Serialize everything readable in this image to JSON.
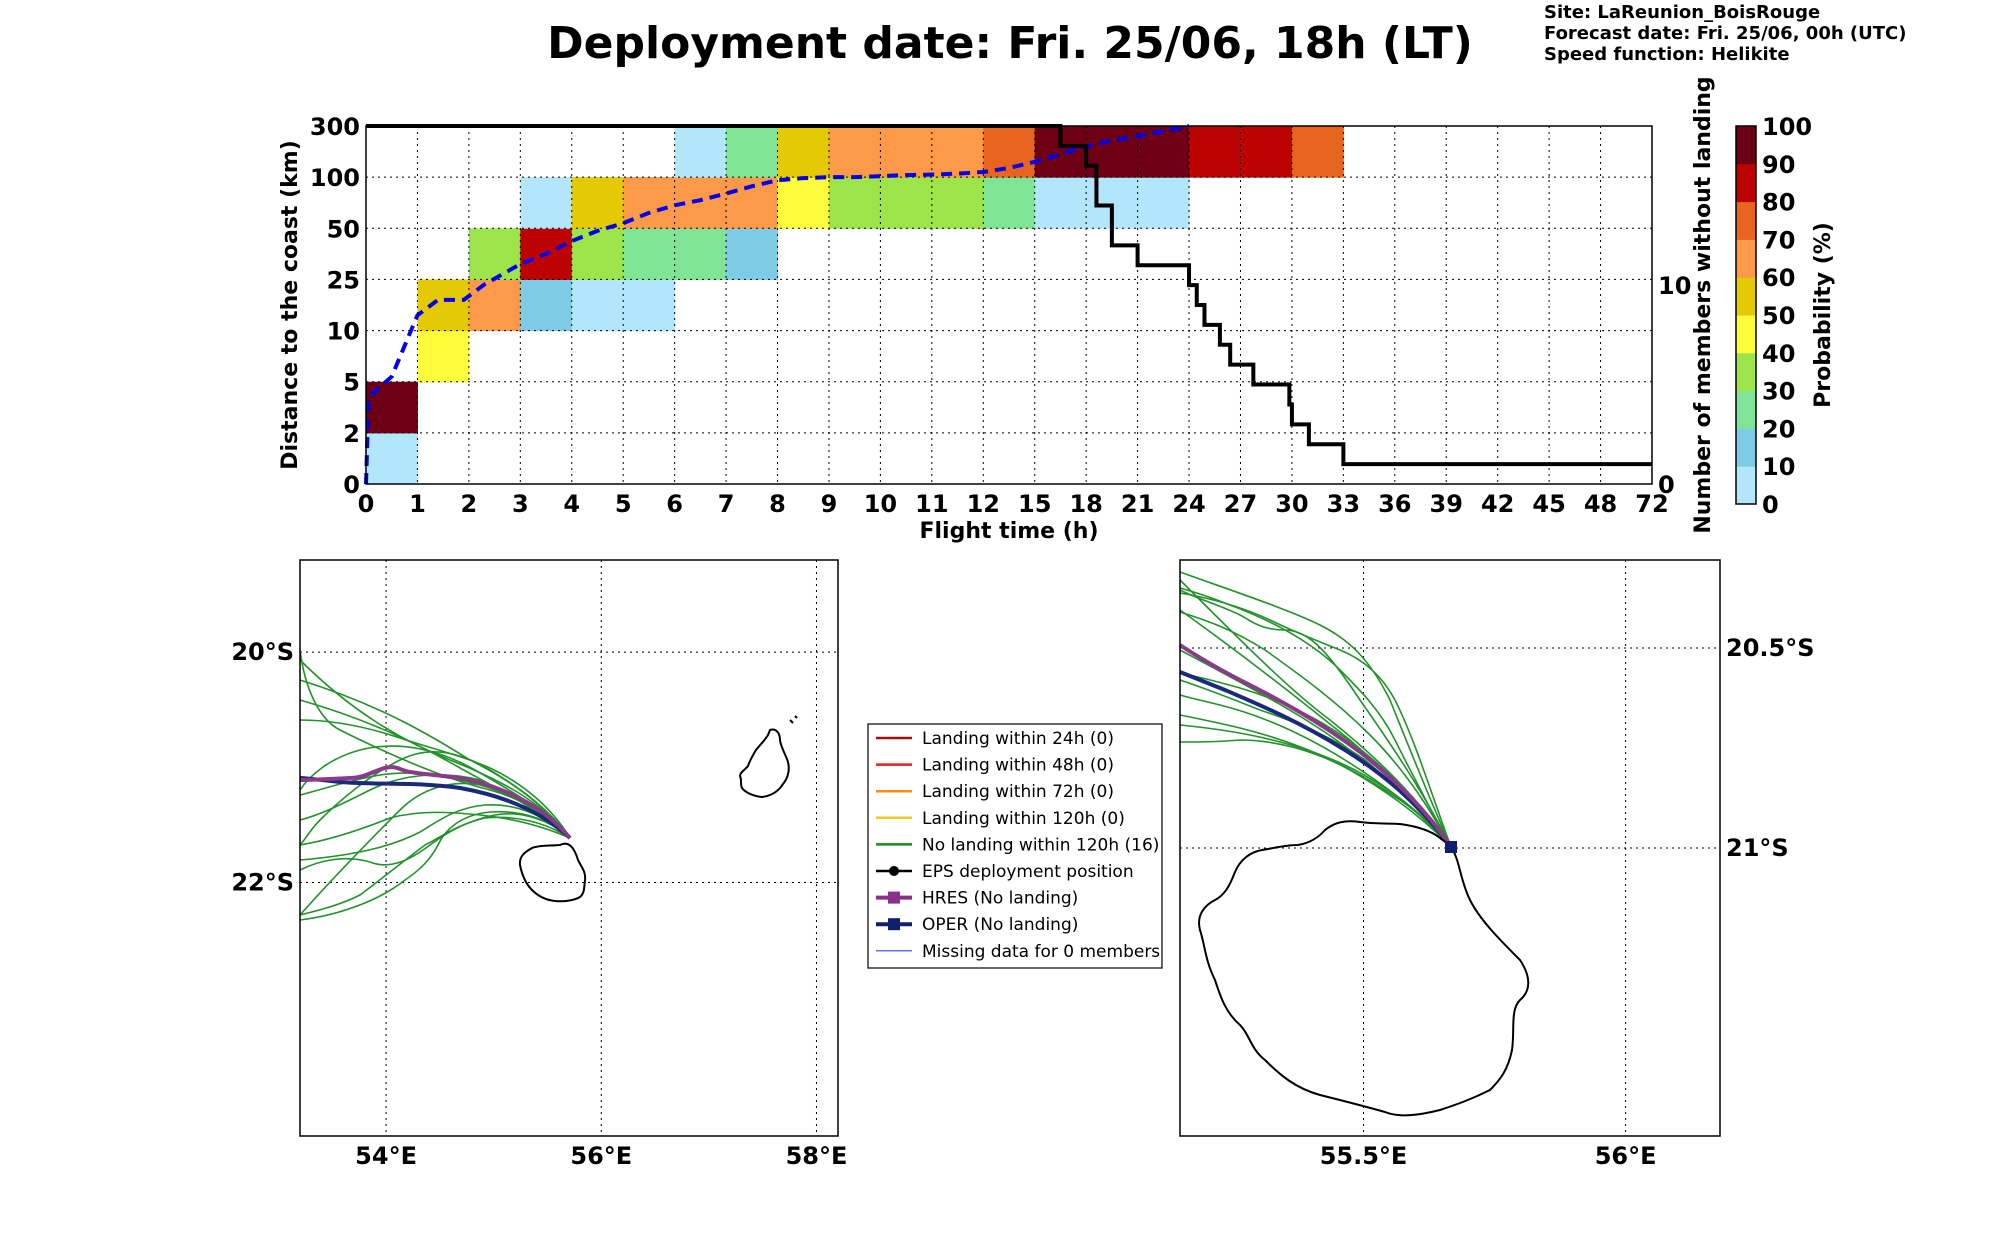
{
  "header": {
    "title": "Deployment date: Fri. 25/06, 18h (LT)",
    "site": "Site: LaReunion_BoisRouge",
    "forecast_date": "Forecast date: Fri. 25/06, 00h (UTC)",
    "speed_function": "Speed function: Helikite"
  },
  "chart_data": [
    {
      "type": "heatmap",
      "title": "",
      "xlabel": "Flight time (h)",
      "ylabel": "Distance to the coast (km)",
      "y2label": "Number of members without landing",
      "x_tick_labels": [
        "0",
        "1",
        "2",
        "3",
        "4",
        "5",
        "6",
        "7",
        "8",
        "9",
        "10",
        "11",
        "12",
        "15",
        "18",
        "21",
        "24",
        "27",
        "30",
        "33",
        "36",
        "39",
        "42",
        "45",
        "48",
        "72"
      ],
      "y_tick_labels": [
        "0",
        "2",
        "5",
        "10",
        "25",
        "50",
        "100",
        "300"
      ],
      "y2_ticks": [
        0,
        10
      ],
      "y2_range": [
        0,
        18
      ],
      "colorbar": {
        "label": "Probability (%)",
        "ticks": [
          "0",
          "10",
          "20",
          "30",
          "40",
          "50",
          "60",
          "70",
          "80",
          "90",
          "100"
        ],
        "colors": [
          "#b3e5fb",
          "#7ecbe6",
          "#80e496",
          "#9ce449",
          "#fcfc3a",
          "#e4c904",
          "#fc9a4a",
          "#e86520",
          "#bc0202",
          "#6e0016"
        ]
      },
      "cells": [
        {
          "x": 0,
          "y": 0,
          "p": 0
        },
        {
          "x": 0,
          "y": 1,
          "p": 90
        },
        {
          "x": 1,
          "y": 2,
          "p": 40
        },
        {
          "x": 1,
          "y": 3,
          "p": 50
        },
        {
          "x": 2,
          "y": 3,
          "p": 60
        },
        {
          "x": 2,
          "y": 4,
          "p": 30
        },
        {
          "x": 3,
          "y": 3,
          "p": 10
        },
        {
          "x": 3,
          "y": 4,
          "p": 80
        },
        {
          "x": 3,
          "y": 5,
          "p": 0
        },
        {
          "x": 4,
          "y": 3,
          "p": 0
        },
        {
          "x": 4,
          "y": 4,
          "p": 30
        },
        {
          "x": 4,
          "y": 5,
          "p": 50
        },
        {
          "x": 5,
          "y": 3,
          "p": 0
        },
        {
          "x": 5,
          "y": 4,
          "p": 20
        },
        {
          "x": 5,
          "y": 5,
          "p": 60
        },
        {
          "x": 6,
          "y": 4,
          "p": 20
        },
        {
          "x": 6,
          "y": 5,
          "p": 60
        },
        {
          "x": 6,
          "y": 6,
          "p": 0
        },
        {
          "x": 7,
          "y": 4,
          "p": 10
        },
        {
          "x": 7,
          "y": 5,
          "p": 60
        },
        {
          "x": 7,
          "y": 6,
          "p": 20
        },
        {
          "x": 8,
          "y": 5,
          "p": 40
        },
        {
          "x": 8,
          "y": 6,
          "p": 50
        },
        {
          "x": 9,
          "y": 5,
          "p": 30
        },
        {
          "x": 9,
          "y": 6,
          "p": 60
        },
        {
          "x": 10,
          "y": 5,
          "p": 30
        },
        {
          "x": 10,
          "y": 6,
          "p": 60
        },
        {
          "x": 11,
          "y": 5,
          "p": 30
        },
        {
          "x": 11,
          "y": 6,
          "p": 60
        },
        {
          "x": 12,
          "y": 5,
          "p": 20
        },
        {
          "x": 12,
          "y": 6,
          "p": 70
        },
        {
          "x": 13,
          "y": 5,
          "p": 0
        },
        {
          "x": 13,
          "y": 6,
          "p": 90
        },
        {
          "x": 14,
          "y": 5,
          "p": 0
        },
        {
          "x": 14,
          "y": 6,
          "p": 90
        },
        {
          "x": 15,
          "y": 5,
          "p": 0
        },
        {
          "x": 15,
          "y": 6,
          "p": 90
        },
        {
          "x": 16,
          "y": 6,
          "p": 80
        },
        {
          "x": 17,
          "y": 6,
          "p": 80
        },
        {
          "x": 18,
          "y": 6,
          "p": 70
        }
      ],
      "median_distance_line": {
        "color": "#0000ee",
        "points": [
          [
            0,
            0
          ],
          [
            0.05,
            1.7
          ],
          [
            0.5,
            2.1
          ],
          [
            1,
            3.3
          ],
          [
            1.4,
            3.6
          ],
          [
            1.9,
            3.6
          ],
          [
            2.3,
            3.9
          ],
          [
            3,
            4.3
          ],
          [
            3.5,
            4.5
          ],
          [
            4,
            4.75
          ],
          [
            4.5,
            4.95
          ],
          [
            5,
            5.1
          ],
          [
            5.5,
            5.3
          ],
          [
            6,
            5.45
          ],
          [
            6.5,
            5.55
          ],
          [
            7,
            5.68
          ],
          [
            7.5,
            5.82
          ],
          [
            8,
            5.94
          ],
          [
            8.5,
            5.98
          ],
          [
            9,
            6.0
          ],
          [
            9.5,
            6.0
          ],
          [
            10,
            6.02
          ],
          [
            10.5,
            6.04
          ],
          [
            11,
            6.05
          ],
          [
            11.5,
            6.07
          ],
          [
            12,
            6.1
          ],
          [
            12.5,
            6.18
          ],
          [
            13,
            6.3
          ],
          [
            13.5,
            6.45
          ],
          [
            14,
            6.6
          ],
          [
            14.5,
            6.72
          ],
          [
            15,
            6.8
          ],
          [
            15.5,
            6.9
          ],
          [
            16,
            7.0
          ]
        ]
      },
      "members_without_landing_line": {
        "color": "#000000",
        "steps": [
          [
            0,
            16
          ],
          [
            13.5,
            16
          ],
          [
            13.5,
            15
          ],
          [
            14,
            15
          ],
          [
            14,
            14
          ],
          [
            14.2,
            14
          ],
          [
            14.2,
            12
          ],
          [
            14.5,
            12
          ],
          [
            14.5,
            10
          ],
          [
            15,
            10
          ],
          [
            15,
            9
          ],
          [
            16,
            9
          ],
          [
            16,
            8
          ],
          [
            16.15,
            8
          ],
          [
            16.15,
            7
          ],
          [
            16.3,
            7
          ],
          [
            16.3,
            6
          ],
          [
            16.6,
            6
          ],
          [
            16.6,
            5
          ],
          [
            16.8,
            5
          ],
          [
            16.8,
            4
          ],
          [
            17.25,
            4
          ],
          [
            17.25,
            3
          ],
          [
            17.95,
            3
          ],
          [
            17.95,
            2
          ],
          [
            18,
            2
          ],
          [
            18,
            1
          ],
          [
            18.33,
            1
          ],
          [
            18.33,
            0
          ],
          [
            19,
            0
          ],
          [
            19,
            -1
          ],
          [
            25,
            -1
          ]
        ]
      }
    },
    {
      "type": "map",
      "name": "left-map",
      "x_tick_labels": [
        "54°E",
        "56°E",
        "58°E"
      ],
      "x_ticks": [
        54,
        56,
        58
      ],
      "y_tick_labels": [
        "20°S",
        "22°S"
      ],
      "y_ticks": [
        -20,
        -22
      ],
      "lon_range": [
        53.2,
        58.2
      ],
      "lat_range": [
        -24.2,
        -19.2
      ]
    },
    {
      "type": "map",
      "name": "right-map",
      "x_tick_labels": [
        "55.5°E",
        "56°E"
      ],
      "x_ticks": [
        55.5,
        56
      ],
      "y_tick_labels": [
        "20.5°S",
        "21°S"
      ],
      "y_ticks": [
        -20.5,
        -21
      ],
      "lon_range": [
        55.15,
        56.18
      ],
      "lat_range": [
        -21.72,
        -20.28
      ]
    }
  ],
  "legend": {
    "items": [
      {
        "label": "Landing within 24h (0)",
        "color": "#a01010",
        "kind": "line"
      },
      {
        "label": "Landing within 48h (0)",
        "color": "#ee1c1c",
        "kind": "line"
      },
      {
        "label": "Landing within 72h (0)",
        "color": "#ff8c1a",
        "kind": "line"
      },
      {
        "label": "Landing within 120h (0)",
        "color": "#f2cc1a",
        "kind": "line"
      },
      {
        "label": "No landing within 120h (16)",
        "color": "#1a8a1a",
        "kind": "line"
      },
      {
        "label": "EPS deployment position",
        "color": "#000000",
        "kind": "dot"
      },
      {
        "label": "HRES (No landing)",
        "color": "#8a2f8a",
        "kind": "square"
      },
      {
        "label": "OPER (No landing)",
        "color": "#0f1f6e",
        "kind": "square"
      },
      {
        "label": "Missing data for 0 members",
        "color": "#3344ff",
        "kind": "thin"
      }
    ]
  }
}
